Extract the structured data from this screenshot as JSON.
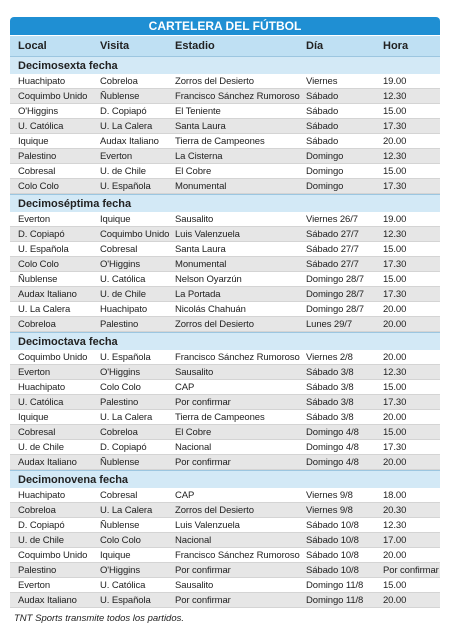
{
  "title": "CARTELERA DEL FÚTBOL",
  "columns": [
    "Local",
    "Visita",
    "Estadio",
    "Día",
    "Hora"
  ],
  "sections": [
    {
      "name": "Decimosexta fecha",
      "rows": [
        [
          "Huachipato",
          "Cobreloa",
          "Zorros del Desierto",
          "Viernes",
          "19.00"
        ],
        [
          "Coquimbo Unido",
          "Ñublense",
          "Francisco Sánchez Rumoroso",
          "Sábado",
          "12.30"
        ],
        [
          "O'Higgins",
          "D. Copiapó",
          "El Teniente",
          "Sábado",
          "15.00"
        ],
        [
          "U. Católica",
          "U. La Calera",
          "Santa Laura",
          "Sábado",
          "17.30"
        ],
        [
          "Iquique",
          "Audax Italiano",
          "Tierra de Campeones",
          "Sábado",
          "20.00"
        ],
        [
          "Palestino",
          "Everton",
          "La Cisterna",
          "Domingo",
          "12.30"
        ],
        [
          "Cobresal",
          "U. de Chile",
          "El Cobre",
          "Domingo",
          "15.00"
        ],
        [
          "Colo Colo",
          "U. Española",
          "Monumental",
          "Domingo",
          "17.30"
        ]
      ]
    },
    {
      "name": "Decimoséptima fecha",
      "rows": [
        [
          "Everton",
          "Iquique",
          "Sausalito",
          "Viernes 26/7",
          "19.00"
        ],
        [
          "D. Copiapó",
          "Coquimbo Unido",
          "Luis Valenzuela",
          "Sábado 27/7",
          "12.30"
        ],
        [
          "U. Española",
          "Cobresal",
          "Santa Laura",
          "Sábado 27/7",
          "15.00"
        ],
        [
          "Colo Colo",
          "O'Higgins",
          "Monumental",
          "Sábado 27/7",
          "17.30"
        ],
        [
          "Ñublense",
          "U. Católica",
          "Nelson Oyarzún",
          "Domingo 28/7",
          "15.00"
        ],
        [
          "Audax Italiano",
          "U. de Chile",
          "La Portada",
          "Domingo 28/7",
          "17.30"
        ],
        [
          "U. La Calera",
          "Huachipato",
          "Nicolás Chahuán",
          "Domingo 28/7",
          "20.00"
        ],
        [
          "Cobreloa",
          "Palestino",
          "Zorros del Desierto",
          "Lunes 29/7",
          "20.00"
        ]
      ]
    },
    {
      "name": "Decimoctava fecha",
      "rows": [
        [
          "Coquimbo Unido",
          "U. Española",
          "Francisco Sánchez Rumoroso",
          "Viernes 2/8",
          "20.00"
        ],
        [
          "Everton",
          "O'Higgins",
          "Sausalito",
          "Sábado 3/8",
          "12.30"
        ],
        [
          "Huachipato",
          "Colo Colo",
          "CAP",
          "Sábado 3/8",
          "15.00"
        ],
        [
          "U. Católica",
          "Palestino",
          "Por confirmar",
          "Sábado 3/8",
          "17.30"
        ],
        [
          "Iquique",
          "U. La Calera",
          "Tierra de Campeones",
          "Sábado 3/8",
          "20.00"
        ],
        [
          "Cobresal",
          "Cobreloa",
          "El Cobre",
          "Domingo 4/8",
          "15.00"
        ],
        [
          "U. de Chile",
          "D. Copiapó",
          "Nacional",
          "Domingo 4/8",
          "17.30"
        ],
        [
          "Audax Italiano",
          "Ñublense",
          "Por confirmar",
          "Domingo 4/8",
          "20.00"
        ]
      ]
    },
    {
      "name": "Decimonovena fecha",
      "rows": [
        [
          "Huachipato",
          "Cobresal",
          "CAP",
          "Viernes 9/8",
          "18.00"
        ],
        [
          "Cobreloa",
          "U. La Calera",
          "Zorros del Desierto",
          "Viernes 9/8",
          "20.30"
        ],
        [
          "D. Copiapó",
          "Ñublense",
          "Luis Valenzuela",
          "Sábado 10/8",
          "12.30"
        ],
        [
          "U. de Chile",
          "Colo Colo",
          "Nacional",
          "Sábado 10/8",
          "17.00"
        ],
        [
          "Coquimbo Unido",
          "Iquique",
          "Francisco Sánchez Rumoroso",
          "Sábado 10/8",
          "20.00"
        ],
        [
          "Palestino",
          "O'Higgins",
          "Por confirmar",
          "Sábado 10/8",
          "Por confirmar"
        ],
        [
          "Everton",
          "U. Católica",
          "Sausalito",
          "Domingo 11/8",
          "15.00"
        ],
        [
          "Audax Italiano",
          "U. Española",
          "Por confirmar",
          "Domingo 11/8",
          "20.00"
        ]
      ]
    }
  ],
  "footer": "TNT Sports transmite todos los partidos."
}
